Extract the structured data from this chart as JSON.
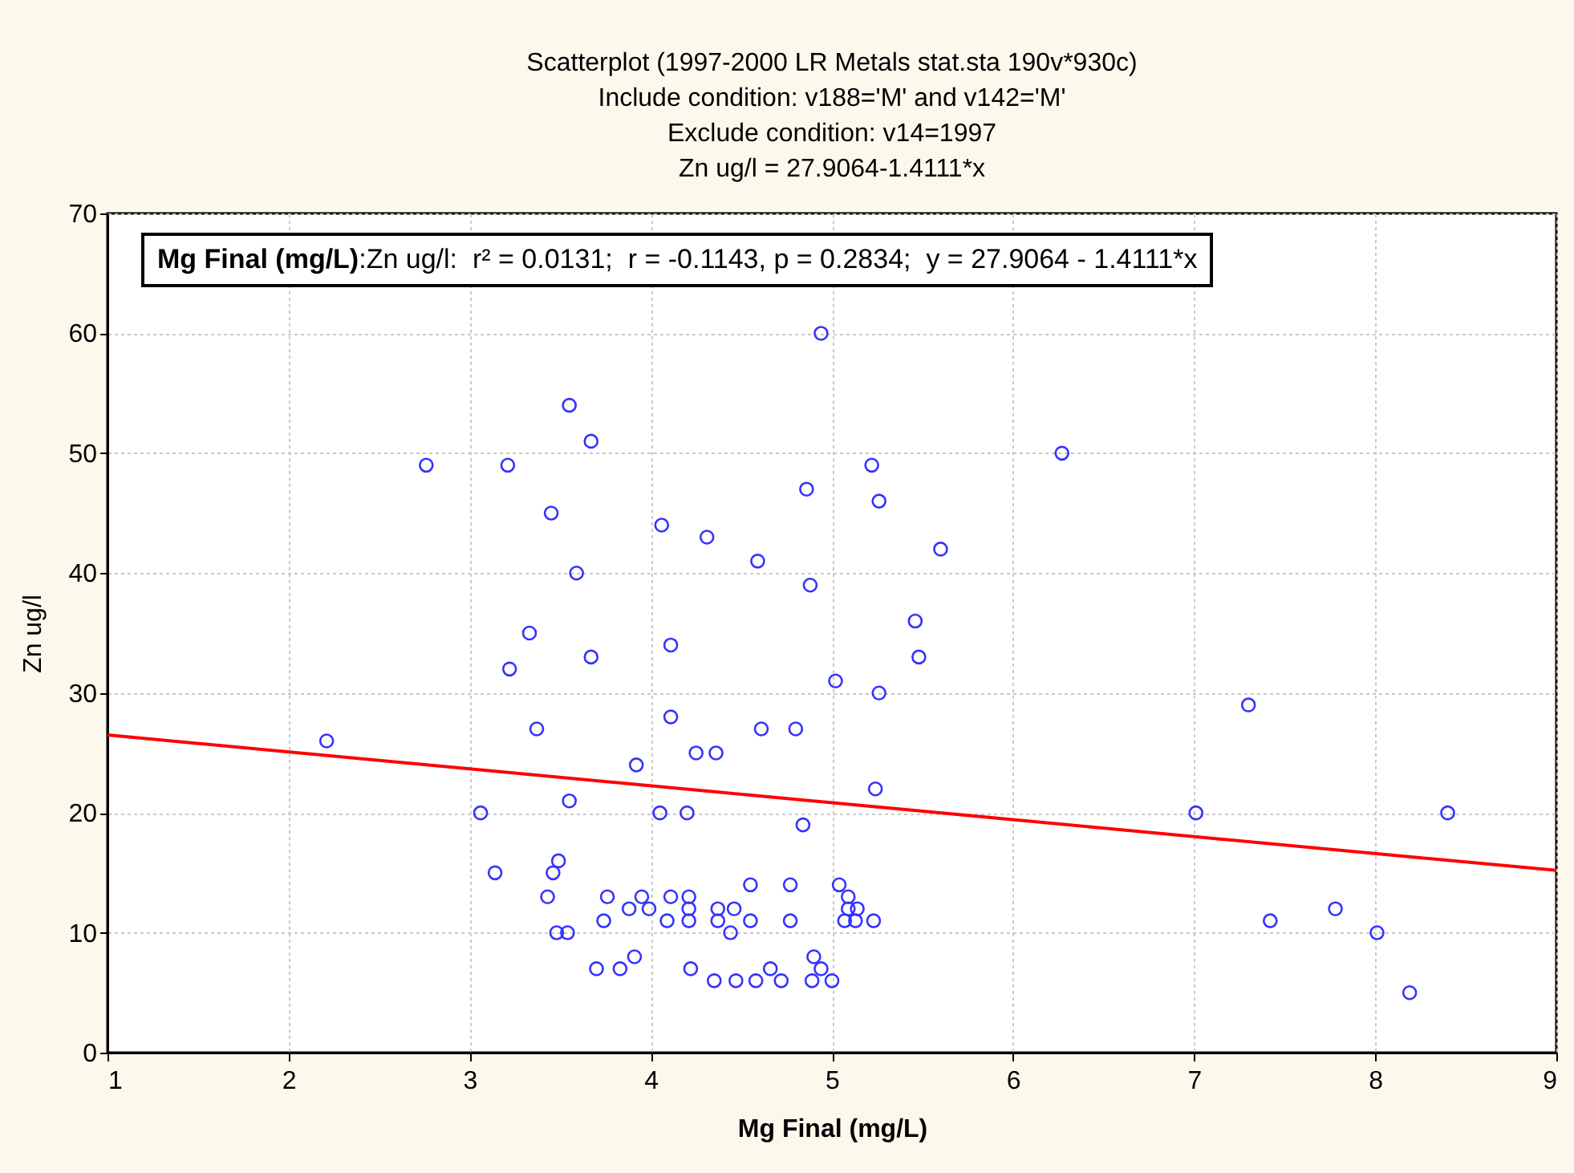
{
  "chart_data": {
    "type": "scatter",
    "title": "Scatterplot (1997-2000 LR Metals stat.sta 190v*930c)",
    "subtitle": "Include condition: v188='M' and v142='M'\nExclude condition: v14=1997\nZn ug/l = 27.9064-1.4111*x",
    "xlabel": "Mg Final (mg/L)",
    "ylabel": "Zn ug/l",
    "annotations": [
      "Mg Final (mg/L):Zn ug/l:  r² = 0.0131;  r = -0.1143, p = 0.2834;  y = 27.9064 - 1.4111*x"
    ],
    "xlim": [
      1,
      9
    ],
    "xticks": [
      1,
      2,
      3,
      4,
      5,
      6,
      7,
      8,
      9
    ],
    "ylim": [
      0,
      70
    ],
    "yticks": [
      0,
      10,
      20,
      30,
      40,
      50,
      60,
      70
    ],
    "grid": true,
    "series": [
      {
        "color": "#3333ff",
        "marker": "circle",
        "x": [
          2.21,
          2.76,
          3.06,
          3.14,
          3.21,
          3.22,
          3.33,
          3.37,
          3.43,
          3.45,
          3.46,
          3.49,
          3.48,
          3.54,
          3.55,
          3.55,
          3.59,
          3.67,
          3.67,
          3.7,
          3.74,
          3.76,
          3.83,
          3.88,
          3.91,
          3.92,
          3.95,
          3.99,
          4.05,
          4.06,
          4.09,
          4.11,
          4.11,
          4.11,
          4.2,
          4.21,
          4.21,
          4.21,
          4.22,
          4.25,
          4.31,
          4.35,
          4.36,
          4.37,
          4.37,
          4.44,
          4.46,
          4.47,
          4.55,
          4.55,
          4.58,
          4.59,
          4.61,
          4.66,
          4.72,
          4.77,
          4.77,
          4.8,
          4.84,
          4.86,
          4.88,
          4.89,
          4.9,
          4.94,
          4.94,
          5.0,
          5.02,
          5.04,
          5.07,
          5.09,
          5.09,
          5.13,
          5.14,
          5.22,
          5.23,
          5.24,
          5.26,
          5.26,
          5.46,
          5.48,
          5.6,
          6.27,
          7.01,
          7.3,
          7.42,
          7.78,
          8.01,
          8.19,
          8.4
        ],
        "values": [
          26,
          49,
          20,
          15,
          49,
          32,
          35,
          27,
          13,
          45,
          15,
          16,
          10,
          10,
          21,
          54,
          40,
          51,
          33,
          7,
          11,
          13,
          7,
          12,
          8,
          24,
          13,
          12,
          20,
          44,
          11,
          13,
          34,
          28,
          20,
          13,
          12,
          11,
          7,
          25,
          43,
          6,
          25,
          12,
          11,
          10,
          12,
          6,
          11,
          14,
          6,
          41,
          27,
          7,
          6,
          14,
          11,
          27,
          19,
          47,
          39,
          6,
          8,
          7,
          60,
          6,
          31,
          14,
          11,
          13,
          12,
          11,
          12,
          49,
          11,
          22,
          30,
          46,
          36,
          33,
          42,
          50,
          20,
          29,
          11,
          12,
          10,
          5,
          20
        ]
      },
      {
        "type": "line",
        "color": "#ff0000",
        "marker": "none",
        "x": [
          1,
          9
        ],
        "values": [
          26.5,
          15.2
        ]
      }
    ]
  }
}
